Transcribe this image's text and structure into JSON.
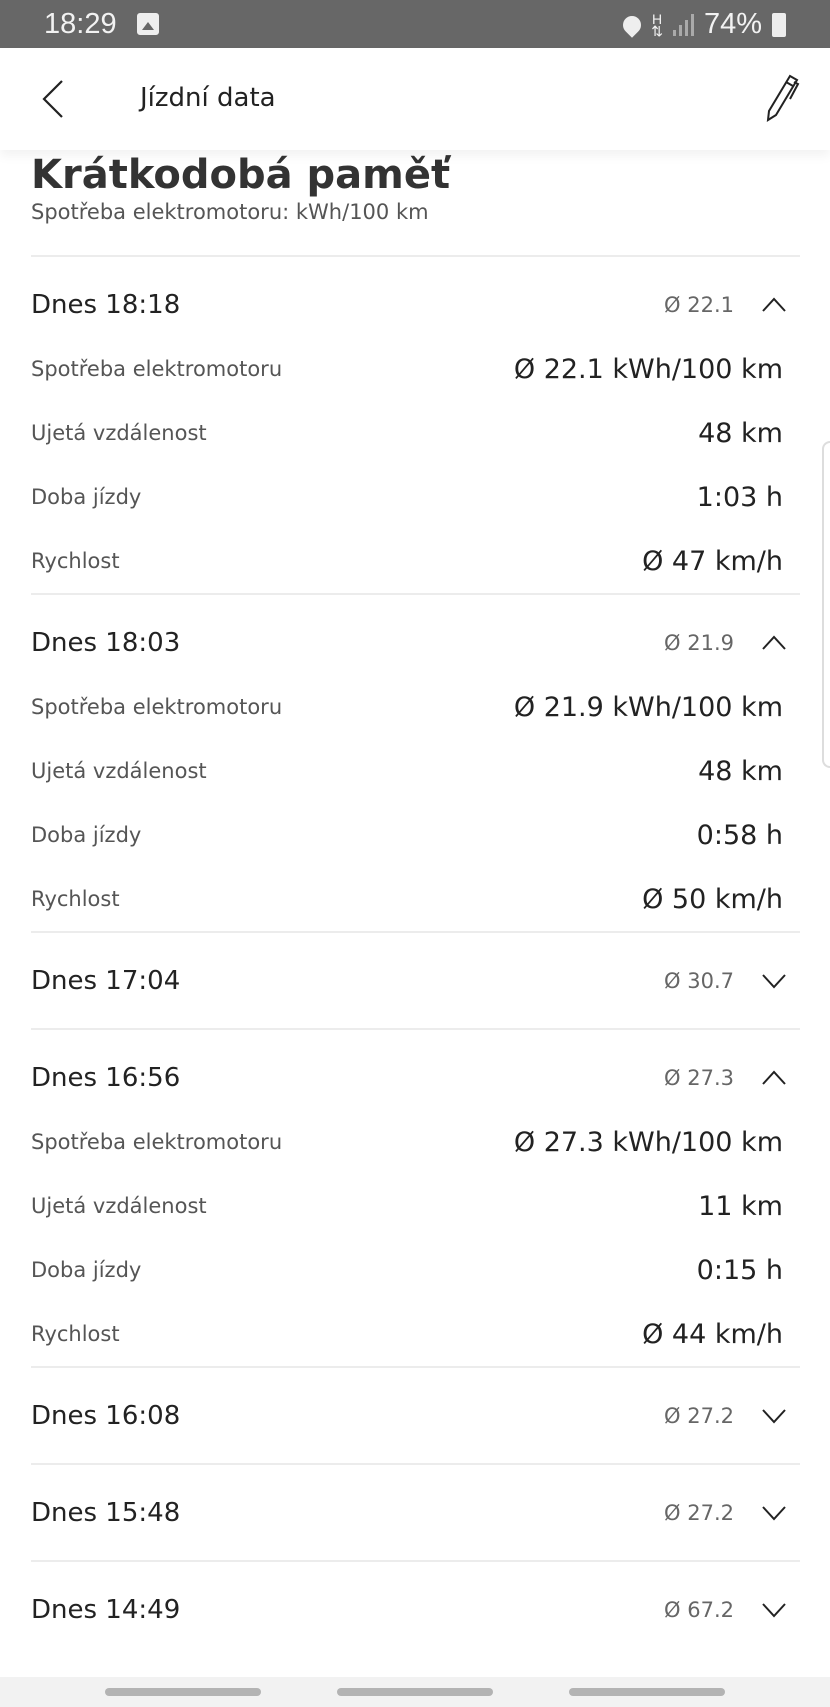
{
  "status_bar": {
    "time": "18:29",
    "battery": "74%",
    "network": "H"
  },
  "header": {
    "title": "Jízdní data",
    "back_icon": "chevron-left-icon",
    "edit_icon": "pencil-icon"
  },
  "section": {
    "title": "Krátkodobá paměť",
    "subtitle": "Spotřeba elektromotoru: kWh/100 km"
  },
  "entries": [
    {
      "date": "Dnes 18:18",
      "avg": "Ø 22.1",
      "expanded": true,
      "details": [
        {
          "label": "Spotřeba elektromotoru",
          "value": "Ø 22.1 kWh/100 km"
        },
        {
          "label": "Ujetá vzdálenost",
          "value": "48 km"
        },
        {
          "label": "Doba jízdy",
          "value": "1:03 h"
        },
        {
          "label": "Rychlost",
          "value": "Ø 47 km/h"
        }
      ]
    },
    {
      "date": "Dnes 18:03",
      "avg": "Ø 21.9",
      "expanded": true,
      "details": [
        {
          "label": "Spotřeba elektromotoru",
          "value": "Ø 21.9 kWh/100 km"
        },
        {
          "label": "Ujetá vzdálenost",
          "value": "48 km"
        },
        {
          "label": "Doba jízdy",
          "value": "0:58 h"
        },
        {
          "label": "Rychlost",
          "value": "Ø 50 km/h"
        }
      ]
    },
    {
      "date": "Dnes 17:04",
      "avg": "Ø 30.7",
      "expanded": false
    },
    {
      "date": "Dnes 16:56",
      "avg": "Ø 27.3",
      "expanded": true,
      "details": [
        {
          "label": "Spotřeba elektromotoru",
          "value": "Ø 27.3 kWh/100 km"
        },
        {
          "label": "Ujetá vzdálenost",
          "value": "11 km"
        },
        {
          "label": "Doba jízdy",
          "value": "0:15 h"
        },
        {
          "label": "Rychlost",
          "value": "Ø 44 km/h"
        }
      ]
    },
    {
      "date": "Dnes 16:08",
      "avg": "Ø 27.2",
      "expanded": false
    },
    {
      "date": "Dnes 15:48",
      "avg": "Ø 27.2",
      "expanded": false
    },
    {
      "date": "Dnes 14:49",
      "avg": "Ø 67.2",
      "expanded": false
    }
  ]
}
